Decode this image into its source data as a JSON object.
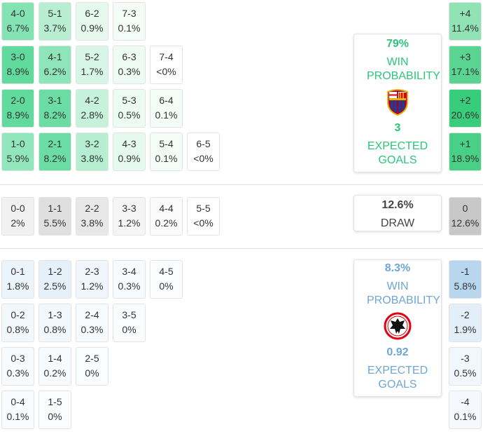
{
  "home": {
    "rows": [
      [
        {
          "score": "4-0",
          "prob": "6.7%"
        },
        {
          "score": "5-1",
          "prob": "3.7%"
        },
        {
          "score": "6-2",
          "prob": "0.9%"
        },
        {
          "score": "7-3",
          "prob": "0.1%"
        }
      ],
      [
        {
          "score": "3-0",
          "prob": "8.9%"
        },
        {
          "score": "4-1",
          "prob": "6.2%"
        },
        {
          "score": "5-2",
          "prob": "1.7%"
        },
        {
          "score": "6-3",
          "prob": "0.3%"
        },
        {
          "score": "7-4",
          "prob": "<0%"
        }
      ],
      [
        {
          "score": "2-0",
          "prob": "8.9%"
        },
        {
          "score": "3-1",
          "prob": "8.2%"
        },
        {
          "score": "4-2",
          "prob": "2.8%"
        },
        {
          "score": "5-3",
          "prob": "0.5%"
        },
        {
          "score": "6-4",
          "prob": "0.1%"
        }
      ],
      [
        {
          "score": "1-0",
          "prob": "5.9%"
        },
        {
          "score": "2-1",
          "prob": "8.2%"
        },
        {
          "score": "3-2",
          "prob": "3.8%"
        },
        {
          "score": "4-3",
          "prob": "0.9%"
        },
        {
          "score": "5-4",
          "prob": "0.1%"
        },
        {
          "score": "6-5",
          "prob": "<0%"
        }
      ]
    ],
    "margins": [
      {
        "label": "+4",
        "prob": "11.4%"
      },
      {
        "label": "+3",
        "prob": "17.1%"
      },
      {
        "label": "+2",
        "prob": "20.6%"
      },
      {
        "label": "+1",
        "prob": "18.9%"
      }
    ],
    "card": {
      "win_pct": "79%",
      "win_label": "WIN PROBABILITY",
      "xg": "3",
      "xg_label": "EXPECTED GOALS"
    }
  },
  "draw": {
    "rows": [
      [
        {
          "score": "0-0",
          "prob": "2%"
        },
        {
          "score": "1-1",
          "prob": "5.5%"
        },
        {
          "score": "2-2",
          "prob": "3.8%"
        },
        {
          "score": "3-3",
          "prob": "1.2%"
        },
        {
          "score": "4-4",
          "prob": "0.2%"
        },
        {
          "score": "5-5",
          "prob": "<0%"
        }
      ]
    ],
    "margins": [
      {
        "label": "0",
        "prob": "12.6%"
      }
    ],
    "card": {
      "pct": "12.6%",
      "label": "DRAW"
    }
  },
  "away": {
    "rows": [
      [
        {
          "score": "0-1",
          "prob": "1.8%"
        },
        {
          "score": "1-2",
          "prob": "2.5%"
        },
        {
          "score": "2-3",
          "prob": "1.2%"
        },
        {
          "score": "3-4",
          "prob": "0.3%"
        },
        {
          "score": "4-5",
          "prob": "0%"
        }
      ],
      [
        {
          "score": "0-2",
          "prob": "0.8%"
        },
        {
          "score": "1-3",
          "prob": "0.8%"
        },
        {
          "score": "2-4",
          "prob": "0.3%"
        },
        {
          "score": "3-5",
          "prob": "0%"
        }
      ],
      [
        {
          "score": "0-3",
          "prob": "0.3%"
        },
        {
          "score": "1-4",
          "prob": "0.2%"
        },
        {
          "score": "2-5",
          "prob": "0%"
        }
      ],
      [
        {
          "score": "0-4",
          "prob": "0.1%"
        },
        {
          "score": "1-5",
          "prob": "0%"
        }
      ]
    ],
    "margins": [
      {
        "label": "-1",
        "prob": "5.8%"
      },
      {
        "label": "-2",
        "prob": "1.9%"
      },
      {
        "label": "-3",
        "prob": "0.5%"
      },
      {
        "label": "-4",
        "prob": "0.1%"
      }
    ],
    "card": {
      "win_pct": "8.3%",
      "win_label": "WIN PROBABILITY",
      "xg": "0.92",
      "xg_label": "EXPECTED GOALS"
    }
  }
}
